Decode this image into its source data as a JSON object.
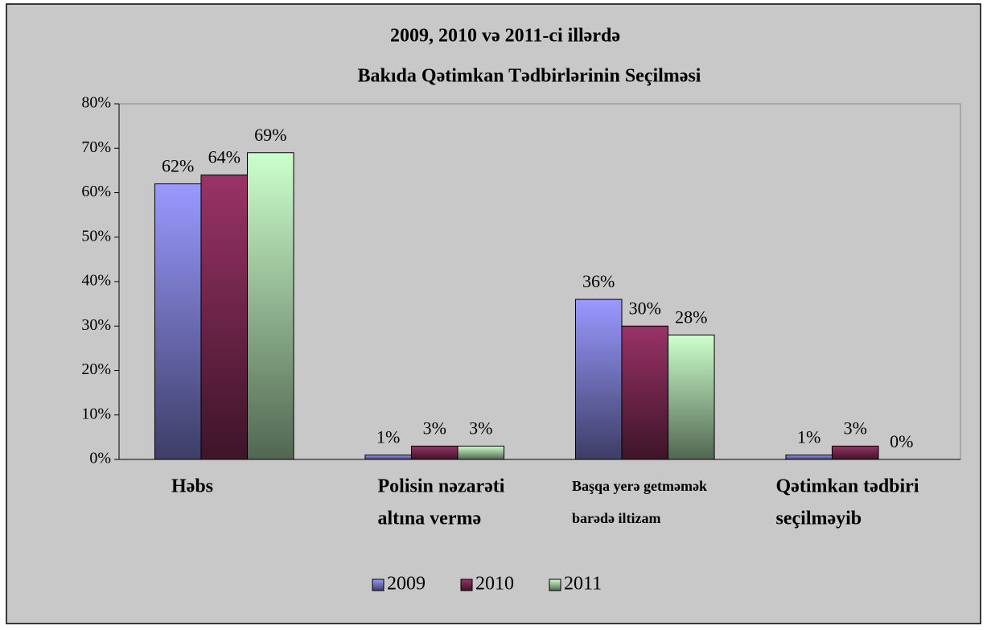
{
  "chart_data": {
    "type": "bar",
    "title": [
      "2009, 2010 və 2011-ci illərdə",
      "Bakıda Qətimkan Tədbirlərinin Seçilməsi"
    ],
    "categories": [
      [
        "Həbs"
      ],
      [
        "Polisin nəzarəti",
        "altına vermə"
      ],
      [
        "Başqa yerə getməmək",
        "barədə iltizam"
      ],
      [
        "Qətimkan tədbiri",
        "seçilməyib"
      ]
    ],
    "series": [
      {
        "name": "2009",
        "color": "#9999ff",
        "values": [
          62,
          1,
          36,
          1
        ],
        "value_labels": [
          "62%",
          "1%",
          "36%",
          "1%"
        ]
      },
      {
        "name": "2010",
        "color": "#993366",
        "values": [
          64,
          3,
          30,
          3
        ],
        "value_labels": [
          "64%",
          "3%",
          "30%",
          "3%"
        ]
      },
      {
        "name": "2011",
        "color": "#ccffcc",
        "values": [
          69,
          3,
          28,
          0
        ],
        "value_labels": [
          "69%",
          "3%",
          "28%",
          "0%"
        ]
      }
    ],
    "ylim": [
      0,
      80
    ],
    "yticks": [
      {
        "value": 0,
        "label": "0%"
      },
      {
        "value": 10,
        "label": "10%"
      },
      {
        "value": 20,
        "label": "20%"
      },
      {
        "value": 30,
        "label": "30%"
      },
      {
        "value": 40,
        "label": "40%"
      },
      {
        "value": 50,
        "label": "50%"
      },
      {
        "value": 60,
        "label": "60%"
      },
      {
        "value": 70,
        "label": "70%"
      },
      {
        "value": 80,
        "label": "80%"
      }
    ],
    "legend": "bottom"
  }
}
